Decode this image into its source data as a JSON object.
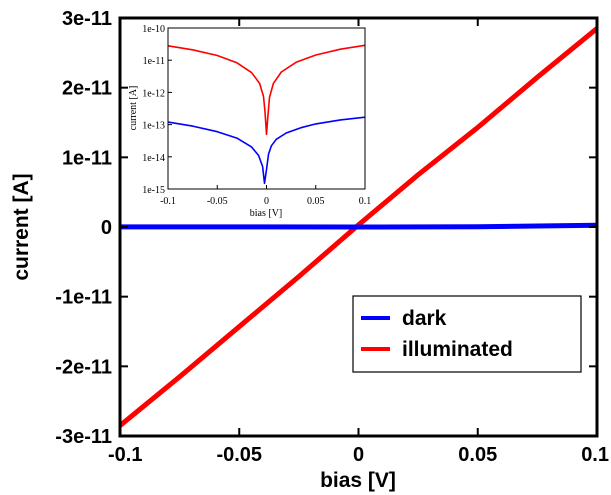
{
  "chart_data": [
    {
      "type": "line",
      "xlabel": "bias [V]",
      "ylabel": "current [A]",
      "xlim": [
        -0.1,
        0.1
      ],
      "ylim": [
        -3e-11,
        3e-11
      ],
      "x_ticks": [
        "-0.1",
        "-0.05",
        "0",
        "0.05",
        "0.1"
      ],
      "x_tick_values": [
        -0.1,
        -0.05,
        0,
        0.05,
        0.1
      ],
      "y_ticks": [
        "3e-11",
        "2e-11",
        "1e-11",
        "0",
        "-1e-11",
        "-2e-11",
        "-3e-11"
      ],
      "y_tick_values": [
        3e-11,
        2e-11,
        1e-11,
        0,
        -1e-11,
        -2e-11,
        -3e-11
      ],
      "legend": {
        "placement": "lower-right"
      },
      "series": [
        {
          "name": "dark",
          "color": "#0000ff",
          "x": [
            -0.1,
            -0.05,
            0,
            0.05,
            0.1
          ],
          "y": [
            2e-14,
            1e-14,
            0,
            5e-14,
            2.5e-13
          ]
        },
        {
          "name": "illuminated",
          "color": "#ff0000",
          "x": [
            -0.1,
            -0.075,
            -0.05,
            -0.025,
            0,
            0.025,
            0.05,
            0.075,
            0.1
          ],
          "y": [
            -2.85e-11,
            -2.15e-11,
            -1.43e-11,
            -7.1e-12,
            3e-13,
            7.5e-12,
            1.43e-11,
            2.15e-11,
            2.85e-11
          ]
        }
      ]
    },
    {
      "type": "line",
      "xlabel": "bias [V]",
      "ylabel": "current [A]",
      "xlim": [
        -0.1,
        0.1
      ],
      "ylim": [
        1e-15,
        1e-10
      ],
      "yscale": "log",
      "x_ticks": [
        "-0.1",
        "-0.05",
        "0",
        "0.05",
        "0.1"
      ],
      "x_tick_values": [
        -0.1,
        -0.05,
        0,
        0.05,
        0.1
      ],
      "y_ticks": [
        "1e-10",
        "1e-11",
        "1e-12",
        "1e-13",
        "1e-14",
        "1e-15"
      ],
      "y_tick_values": [
        1e-10,
        1e-11,
        1e-12,
        1e-13,
        1e-14,
        1e-15
      ],
      "series": [
        {
          "color": "#ff0000",
          "x": [
            -0.1,
            -0.075,
            -0.05,
            -0.03,
            -0.015,
            -0.007,
            -0.003,
            -0.0015,
            0,
            0.0015,
            0.003,
            0.007,
            0.015,
            0.03,
            0.05,
            0.075,
            0.1
          ],
          "y": [
            2.8e-11,
            2.1e-11,
            1.4e-11,
            8.3e-12,
            4.1e-12,
            1.9e-12,
            7.5e-13,
            2.5e-13,
            5e-14,
            2e-13,
            7e-13,
            1.9e-12,
            4.3e-12,
            8.6e-12,
            1.45e-11,
            2.2e-11,
            2.9e-11
          ]
        },
        {
          "color": "#0000ff",
          "x": [
            -0.1,
            -0.075,
            -0.05,
            -0.03,
            -0.015,
            -0.008,
            -0.004,
            -0.002,
            0,
            0.002,
            0.005,
            0.01,
            0.02,
            0.035,
            0.05,
            0.075,
            0.1
          ],
          "y": [
            1.2e-13,
            9e-14,
            6e-14,
            3.8e-14,
            2e-14,
            1.1e-14,
            5e-15,
            1.5e-15,
            4e-15,
            1.2e-14,
            2.2e-14,
            3.5e-14,
            5.5e-14,
            8e-14,
            1.05e-13,
            1.4e-13,
            1.7e-13
          ]
        }
      ]
    }
  ]
}
